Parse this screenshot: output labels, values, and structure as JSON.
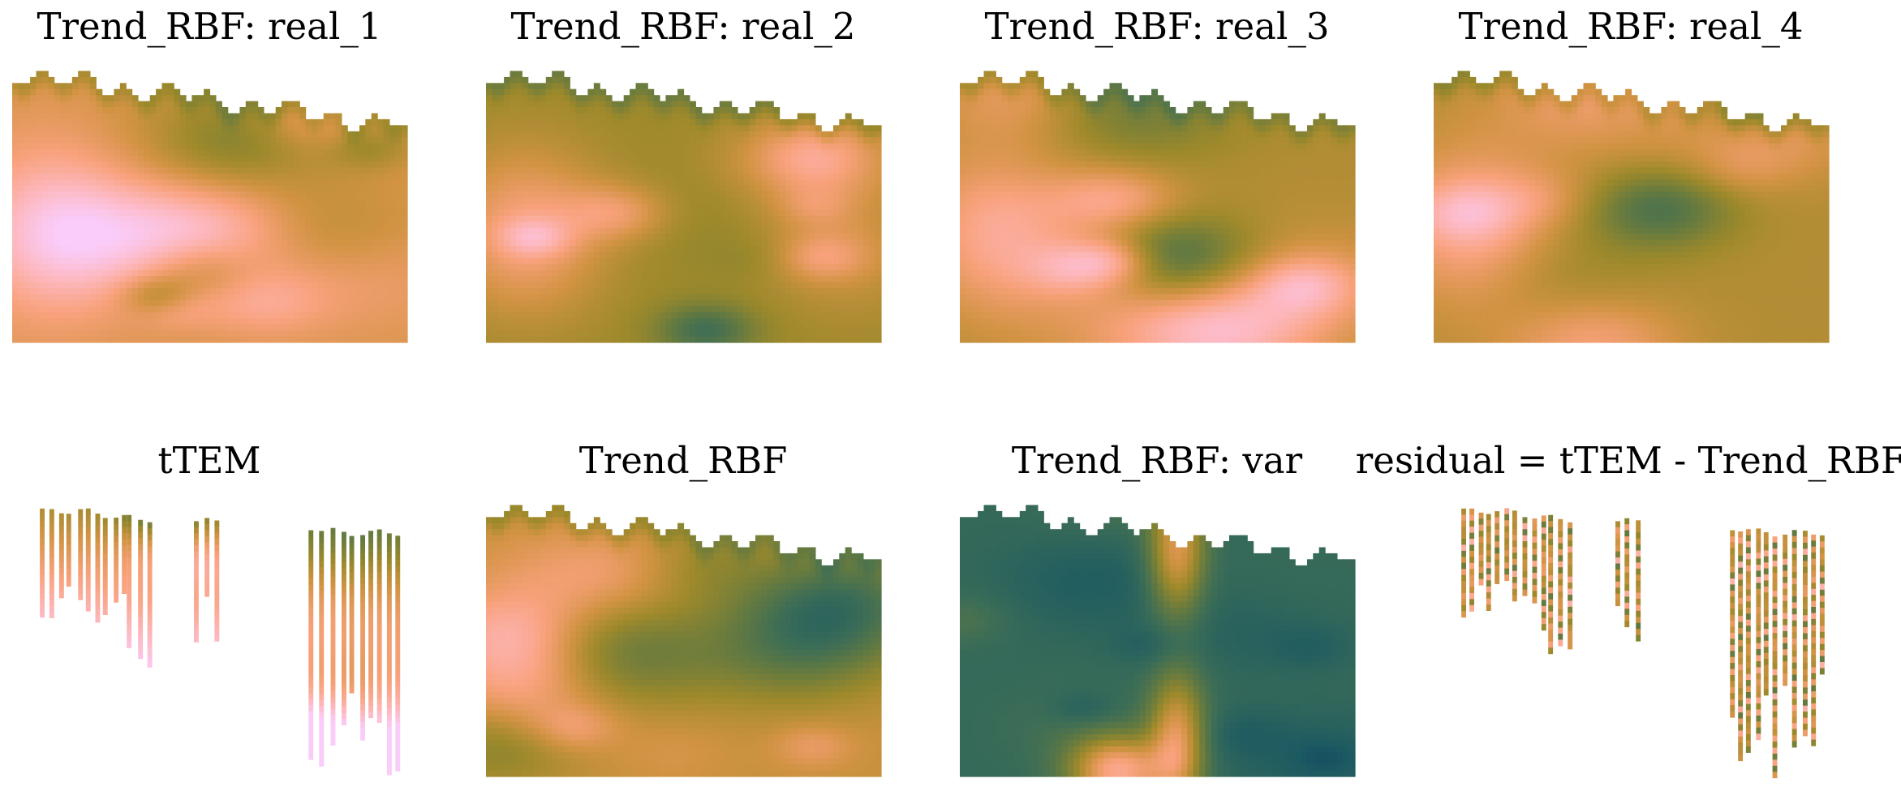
{
  "chart_data": {
    "type": "heatmap",
    "colormap": "batlow",
    "colormap_stops": [
      "#011959",
      "#1c5a62",
      "#3c6d56",
      "#687b3e",
      "#9d892b",
      "#d29343",
      "#f8a17b",
      "#fdb7bc",
      "#faccfa"
    ],
    "axes_visible": false,
    "grid": false,
    "legend": "none",
    "panels": [
      {
        "title": "Trend_RBF: real_1",
        "kind": "field",
        "seed": 11,
        "bias": 0.15
      },
      {
        "title": "Trend_RBF: real_2",
        "kind": "field",
        "seed": 23,
        "bias": 0.0
      },
      {
        "title": "Trend_RBF: real_3",
        "kind": "field",
        "seed": 37,
        "bias": 0.05
      },
      {
        "title": "Trend_RBF: real_4",
        "kind": "field",
        "seed": 41,
        "bias": 0.05
      },
      {
        "title": "tTEM",
        "kind": "soundings",
        "seed": 5
      },
      {
        "title": "Trend_RBF",
        "kind": "field",
        "seed": 59,
        "bias": 0.1
      },
      {
        "title": "Trend_RBF: var",
        "kind": "variance",
        "seed": 67,
        "bias": -0.2
      },
      {
        "title": "residual = tTEM - Trend_RBF",
        "kind": "soundings",
        "seed": 5,
        "residual": true
      }
    ]
  }
}
